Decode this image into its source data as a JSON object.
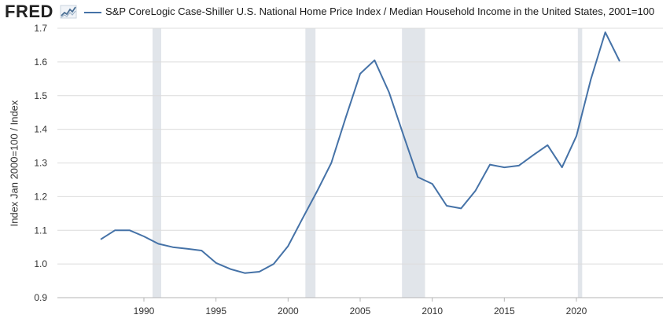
{
  "header": {
    "logo_text": "FRED",
    "logo_icon": "chart-line-icon",
    "legend_label": "S&P CoreLogic Case-Shiller U.S. National Home Price Index / Median Household Income in the United States, 2001=100"
  },
  "colors": {
    "series": "#4572a7",
    "recession": "#e1e5ea",
    "grid": "#dcdcdc"
  },
  "chart_data": {
    "type": "line",
    "title": "S&P CoreLogic Case-Shiller U.S. National Home Price Index / Median Household Income in the United States, 2001=100",
    "xlabel": "",
    "ylabel": "Index Jan 2000=100 / Index",
    "xlim": [
      1984,
      2026
    ],
    "ylim": [
      0.9,
      1.7
    ],
    "xticks": [
      1990,
      1995,
      2000,
      2005,
      2010,
      2015,
      2020
    ],
    "yticks": [
      0.9,
      1.0,
      1.1,
      1.2,
      1.3,
      1.4,
      1.5,
      1.6,
      1.7
    ],
    "yticklabels": [
      "0.9",
      "1.0",
      "1.1",
      "1.2",
      "1.3",
      "1.4",
      "1.5",
      "1.6",
      "1.7"
    ],
    "recessions": [
      [
        1990.6,
        1991.2
      ],
      [
        2001.2,
        2001.9
      ],
      [
        2007.9,
        2009.5
      ],
      [
        2020.1,
        2020.4
      ]
    ],
    "series": [
      {
        "name": "S&P CoreLogic Case-Shiller U.S. National Home Price Index / Median Household Income in the United States, 2001=100",
        "x": [
          1987,
          1988,
          1989,
          1990,
          1991,
          1992,
          1993,
          1994,
          1995,
          1996,
          1997,
          1998,
          1999,
          2000,
          2001,
          2002,
          2003,
          2004,
          2005,
          2006,
          2007,
          2008,
          2009,
          2010,
          2011,
          2012,
          2013,
          2014,
          2015,
          2016,
          2017,
          2018,
          2019,
          2020,
          2021,
          2022,
          2023
        ],
        "values": [
          1.073,
          1.1,
          1.1,
          1.082,
          1.06,
          1.05,
          1.045,
          1.04,
          1.003,
          0.985,
          0.973,
          0.977,
          1.0,
          1.053,
          1.135,
          1.215,
          1.3,
          1.435,
          1.565,
          1.605,
          1.51,
          1.383,
          1.258,
          1.238,
          1.173,
          1.165,
          1.218,
          1.295,
          1.287,
          1.292,
          1.323,
          1.353,
          1.287,
          1.38,
          1.548,
          1.688,
          1.602
        ]
      }
    ]
  }
}
